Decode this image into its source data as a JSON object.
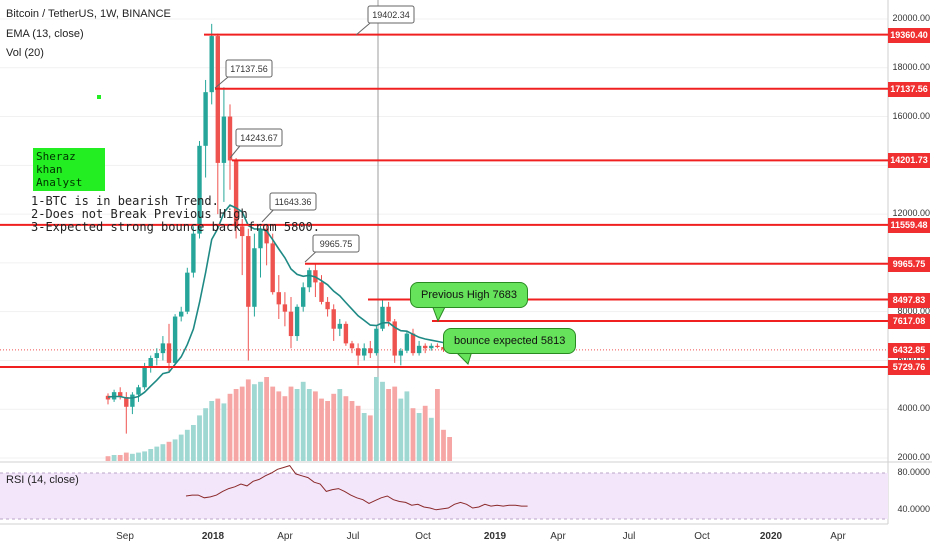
{
  "header": {
    "symbol_line": "Bitcoin / TetherUS, 1W, BINANCE",
    "ema_label": "EMA (13, close)",
    "vol_label": "Vol (20)"
  },
  "analyst": {
    "name": "Sheraz khan",
    "title": "Analyst"
  },
  "notes": [
    "1-BTC is in bearish Trend.",
    "2-Does not Break Previous High",
    "3-Expected strong bounce back from 5800."
  ],
  "callouts": {
    "previous_high": "Previous High 7683",
    "bounce": "bounce expected 5813"
  },
  "rsi_label": "RSI (14, close)",
  "colors": {
    "up": "#26a69a",
    "down": "#ef5350",
    "level_line": "#f02020",
    "ema": "#1f8a85",
    "rsi": "#8b2a2a",
    "rsi_bg": "#f3e6fb"
  },
  "chart_data": {
    "type": "candlestick",
    "price_axis": [
      "20000.00",
      "18000.00",
      "16000.00",
      "14000.00",
      "12000.00",
      "10000.00",
      "8000.00",
      "6000.00",
      "4000.00",
      "2000.00"
    ],
    "time_axis": [
      "Sep",
      "2018",
      "Apr",
      "Jul",
      "Oct",
      "2019",
      "Apr",
      "Jul",
      "Oct",
      "2020",
      "Apr"
    ],
    "level_tags": [
      "19360.40",
      "17137.56",
      "14201.73",
      "11559.48",
      "9965.75",
      "8497.83",
      "7617.08",
      "6432.85",
      "5729.76"
    ],
    "high_labels": [
      "19402.34",
      "17137.56",
      "14243.67",
      "11643.36",
      "9965.75"
    ],
    "rsi_axis": [
      "80.0000",
      "40.0000"
    ],
    "candles": [
      [
        4550,
        4650,
        4200,
        4400
      ],
      [
        4400,
        4800,
        4300,
        4700
      ],
      [
        4700,
        4900,
        4400,
        4500
      ],
      [
        4500,
        4700,
        3000,
        4100
      ],
      [
        4100,
        4700,
        3800,
        4600
      ],
      [
        4600,
        5000,
        4300,
        4900
      ],
      [
        4900,
        5900,
        4800,
        5700
      ],
      [
        5700,
        6200,
        5500,
        6100
      ],
      [
        6100,
        6500,
        5800,
        6300
      ],
      [
        6300,
        7000,
        6000,
        6700
      ],
      [
        6700,
        7500,
        5500,
        5900
      ],
      [
        5900,
        7900,
        5800,
        7800
      ],
      [
        7800,
        8200,
        7600,
        8000
      ],
      [
        8000,
        9800,
        7900,
        9600
      ],
      [
        9600,
        11500,
        9400,
        11200
      ],
      [
        11200,
        15000,
        11000,
        14800
      ],
      [
        14800,
        17500,
        13500,
        17000
      ],
      [
        17000,
        19800,
        16500,
        19300
      ],
      [
        19300,
        19400,
        12000,
        14100
      ],
      [
        14100,
        17200,
        12500,
        16000
      ],
      [
        16000,
        16500,
        13000,
        14200
      ],
      [
        14200,
        14300,
        11000,
        11500
      ],
      [
        11500,
        11800,
        9500,
        11100
      ],
      [
        11100,
        11400,
        6000,
        8200
      ],
      [
        8200,
        11200,
        7800,
        10600
      ],
      [
        10600,
        11600,
        9400,
        11400
      ],
      [
        11400,
        11600,
        9900,
        10800
      ],
      [
        10800,
        11200,
        8700,
        8800
      ],
      [
        8800,
        9500,
        7700,
        8300
      ],
      [
        8300,
        8800,
        7400,
        8000
      ],
      [
        8000,
        8600,
        6500,
        7000
      ],
      [
        7000,
        8300,
        6800,
        8200
      ],
      [
        8200,
        9200,
        8000,
        9000
      ],
      [
        9000,
        9800,
        8800,
        9700
      ],
      [
        9700,
        9950,
        8600,
        9200
      ],
      [
        9200,
        9500,
        8300,
        8400
      ],
      [
        8400,
        8600,
        7800,
        8100
      ],
      [
        8100,
        8300,
        6800,
        7300
      ],
      [
        7300,
        7700,
        7000,
        7500
      ],
      [
        7500,
        7600,
        6600,
        6700
      ],
      [
        6700,
        6800,
        6300,
        6500
      ],
      [
        6500,
        6700,
        5800,
        6200
      ],
      [
        6200,
        6700,
        6000,
        6500
      ],
      [
        6500,
        6800,
        6100,
        6300
      ],
      [
        6300,
        7400,
        6200,
        7300
      ],
      [
        7300,
        8500,
        7200,
        8200
      ],
      [
        8200,
        8400,
        7400,
        7600
      ],
      [
        7600,
        7700,
        5900,
        6200
      ],
      [
        6200,
        6500,
        5800,
        6400
      ],
      [
        6400,
        7200,
        6300,
        7100
      ],
      [
        7100,
        7300,
        6200,
        6300
      ],
      [
        6300,
        6800,
        6200,
        6600
      ],
      [
        6600,
        6700,
        6300,
        6500
      ],
      [
        6500,
        6700,
        6400,
        6600
      ],
      [
        6600,
        6700,
        6500,
        6550
      ],
      [
        6550,
        6600,
        6350,
        6450
      ],
      [
        6450,
        6600,
        6400,
        6432
      ]
    ],
    "ema": [
      4500,
      4520,
      4520,
      4460,
      4460,
      4520,
      4700,
      4950,
      5190,
      5460,
      5520,
      5840,
      6150,
      6650,
      7290,
      8370,
      9600,
      10960,
      11410,
      12060,
      12370,
      12250,
      12090,
      11530,
      11390,
      11390,
      11310,
      10950,
      10570,
      10210,
      9750,
      9530,
      9450,
      9490,
      9420,
      9270,
      9100,
      8840,
      8650,
      8370,
      8100,
      7830,
      7640,
      7450,
      7430,
      7540,
      7550,
      7360,
      7220,
      7200,
      7070,
      6950,
      6880,
      6830,
      6780,
      6730,
      6690
    ],
    "volume": [
      0.04,
      0.05,
      0.05,
      0.07,
      0.06,
      0.07,
      0.08,
      0.1,
      0.12,
      0.14,
      0.16,
      0.18,
      0.22,
      0.26,
      0.3,
      0.38,
      0.44,
      0.5,
      0.52,
      0.48,
      0.56,
      0.6,
      0.62,
      0.68,
      0.64,
      0.66,
      0.7,
      0.62,
      0.58,
      0.54,
      0.62,
      0.6,
      0.66,
      0.6,
      0.58,
      0.52,
      0.5,
      0.56,
      0.6,
      0.54,
      0.5,
      0.46,
      0.4,
      0.38,
      0.7,
      0.66,
      0.6,
      0.62,
      0.52,
      0.58,
      0.44,
      0.4,
      0.46,
      0.36,
      0.6,
      0.26,
      0.2
    ],
    "rsi": [
      55,
      56,
      56,
      53,
      54,
      56,
      60,
      63,
      65,
      68,
      66,
      71,
      73,
      77,
      80,
      84,
      86,
      88,
      79,
      77,
      75,
      70,
      68,
      60,
      62,
      63,
      60,
      56,
      53,
      51,
      47,
      50,
      53,
      55,
      51,
      49,
      48,
      45,
      46,
      43,
      42,
      40,
      41,
      42,
      46,
      48,
      46,
      42,
      43,
      46,
      44,
      45,
      44,
      45,
      45,
      44,
      44
    ]
  }
}
